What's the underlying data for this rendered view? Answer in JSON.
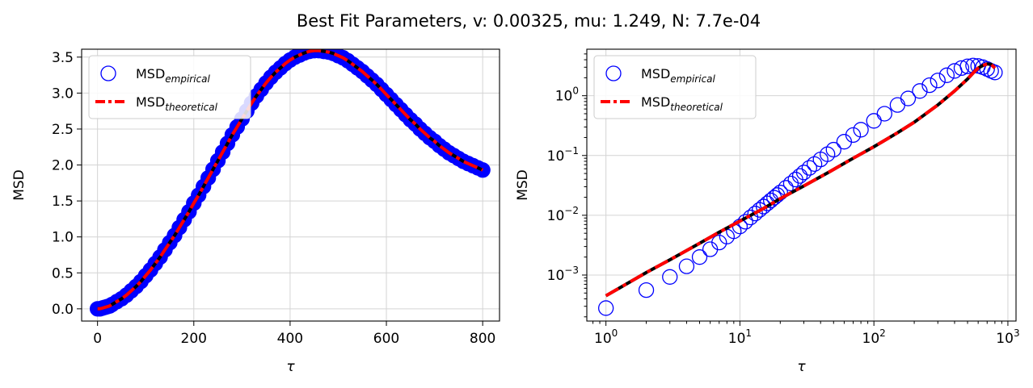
{
  "figure": {
    "suptitle": "Best Fit Parameters, v: 0.00325, mu: 1.249, N: 7.7e-04"
  },
  "chart_data": [
    {
      "type": "scatter",
      "id": "linear",
      "xlabel": "τ",
      "ylabel": "MSD",
      "xlim": [
        -33,
        835
      ],
      "ylim": [
        -0.17,
        3.61
      ],
      "xscale": "linear",
      "yscale": "linear",
      "xticks": [
        0,
        200,
        400,
        600,
        800
      ],
      "xtick_labels": [
        "0",
        "200",
        "400",
        "600",
        "800"
      ],
      "yticks": [
        0.0,
        0.5,
        1.0,
        1.5,
        2.0,
        2.5,
        3.0,
        3.5
      ],
      "ytick_labels": [
        "0.0",
        "0.5",
        "1.0",
        "1.5",
        "2.0",
        "2.5",
        "3.0",
        "3.5"
      ],
      "grid": true,
      "legend_position": "upper-left",
      "series": [
        {
          "name_base": "MSD",
          "name_sub": "empirical",
          "kind": "markers",
          "color": "#0000ff",
          "x": [
            0,
            5,
            10,
            15,
            20,
            25,
            30,
            40,
            50,
            60,
            70,
            80,
            90,
            100,
            110,
            120,
            130,
            140,
            150,
            160,
            170,
            180,
            190,
            200,
            210,
            220,
            230,
            240,
            250,
            260,
            270,
            280,
            290,
            300,
            310,
            320,
            330,
            340,
            350,
            360,
            370,
            380,
            390,
            400,
            410,
            420,
            430,
            440,
            450,
            460,
            470,
            480,
            490,
            500,
            510,
            520,
            530,
            540,
            550,
            560,
            570,
            580,
            590,
            600,
            610,
            620,
            630,
            640,
            650,
            660,
            670,
            680,
            690,
            700,
            710,
            720,
            730,
            740,
            750,
            760,
            770,
            780,
            790,
            800
          ],
          "y": [
            0.0,
            0.0,
            0.01,
            0.02,
            0.03,
            0.04,
            0.06,
            0.1,
            0.14,
            0.19,
            0.25,
            0.31,
            0.38,
            0.46,
            0.54,
            0.63,
            0.72,
            0.82,
            0.92,
            1.02,
            1.13,
            1.24,
            1.35,
            1.47,
            1.58,
            1.7,
            1.82,
            1.94,
            2.06,
            2.18,
            2.3,
            2.42,
            2.53,
            2.64,
            2.75,
            2.86,
            2.96,
            3.05,
            3.14,
            3.22,
            3.29,
            3.35,
            3.41,
            3.46,
            3.5,
            3.53,
            3.56,
            3.58,
            3.59,
            3.59,
            3.58,
            3.57,
            3.55,
            3.52,
            3.49,
            3.45,
            3.4,
            3.35,
            3.3,
            3.24,
            3.18,
            3.12,
            3.05,
            2.98,
            2.91,
            2.84,
            2.77,
            2.7,
            2.63,
            2.57,
            2.5,
            2.44,
            2.38,
            2.33,
            2.27,
            2.22,
            2.17,
            2.13,
            2.09,
            2.05,
            2.02,
            1.99,
            1.96,
            1.93
          ]
        },
        {
          "name_base": "MSD",
          "name_sub": "theoretical",
          "kind": "line",
          "color": "#ff0000",
          "x": [
            0,
            5,
            10,
            15,
            20,
            25,
            30,
            40,
            50,
            60,
            70,
            80,
            90,
            100,
            110,
            120,
            130,
            140,
            150,
            160,
            170,
            180,
            190,
            200,
            210,
            220,
            230,
            240,
            250,
            260,
            270,
            280,
            290,
            300,
            310,
            320,
            330,
            340,
            350,
            360,
            370,
            380,
            390,
            400,
            410,
            420,
            430,
            440,
            450,
            460,
            470,
            480,
            490,
            500,
            510,
            520,
            530,
            540,
            550,
            560,
            570,
            580,
            590,
            600,
            610,
            620,
            630,
            640,
            650,
            660,
            670,
            680,
            690,
            700,
            710,
            720,
            730,
            740,
            750,
            760,
            770,
            780,
            790,
            800
          ],
          "y": [
            0.0,
            0.0,
            0.01,
            0.02,
            0.03,
            0.04,
            0.06,
            0.1,
            0.14,
            0.19,
            0.25,
            0.31,
            0.38,
            0.46,
            0.54,
            0.63,
            0.72,
            0.82,
            0.92,
            1.02,
            1.13,
            1.24,
            1.35,
            1.47,
            1.58,
            1.7,
            1.82,
            1.94,
            2.06,
            2.18,
            2.3,
            2.42,
            2.53,
            2.64,
            2.75,
            2.86,
            2.96,
            3.05,
            3.14,
            3.22,
            3.29,
            3.35,
            3.41,
            3.46,
            3.5,
            3.53,
            3.56,
            3.58,
            3.59,
            3.59,
            3.58,
            3.57,
            3.55,
            3.52,
            3.49,
            3.45,
            3.4,
            3.35,
            3.3,
            3.24,
            3.18,
            3.12,
            3.05,
            2.98,
            2.91,
            2.84,
            2.77,
            2.7,
            2.63,
            2.57,
            2.5,
            2.44,
            2.38,
            2.33,
            2.27,
            2.22,
            2.17,
            2.13,
            2.09,
            2.05,
            2.02,
            1.99,
            1.96,
            1.93
          ]
        }
      ]
    },
    {
      "type": "scatter",
      "id": "loglog",
      "xlabel": "τ",
      "ylabel": "MSD",
      "xlim": [
        0.72,
        1150
      ],
      "ylim": [
        0.00017,
        6.0
      ],
      "xscale": "log",
      "yscale": "log",
      "xticks": [
        1,
        10,
        100,
        1000
      ],
      "xtick_base": [
        "10",
        "10",
        "10",
        "10"
      ],
      "xtick_exp": [
        "0",
        "1",
        "2",
        "3"
      ],
      "yticks": [
        0.001,
        0.01,
        0.1,
        1
      ],
      "ytick_base": [
        "10",
        "10",
        "10",
        "10"
      ],
      "ytick_exp": [
        "−3",
        "−2",
        "−1",
        "0"
      ],
      "grid": true,
      "legend_position": "upper-left",
      "series": [
        {
          "name_base": "MSD",
          "name_sub": "empirical",
          "kind": "markers",
          "color": "#0000ff",
          "x": [
            1,
            2,
            3,
            4,
            5,
            6,
            7,
            8,
            9,
            10,
            11,
            12,
            13,
            14,
            15,
            16,
            17,
            18,
            19,
            20,
            22,
            24,
            26,
            28,
            30,
            33,
            36,
            40,
            45,
            50,
            60,
            70,
            80,
            100,
            120,
            150,
            180,
            220,
            260,
            300,
            350,
            400,
            450,
            500,
            550,
            600,
            650,
            700,
            750,
            800
          ],
          "y": [
            0.00028,
            0.00056,
            0.00093,
            0.0014,
            0.002,
            0.0027,
            0.0035,
            0.0044,
            0.0054,
            0.0065,
            0.0078,
            0.0092,
            0.0107,
            0.0123,
            0.014,
            0.0158,
            0.0177,
            0.0197,
            0.0218,
            0.024,
            0.0288,
            0.034,
            0.0396,
            0.0455,
            0.052,
            0.062,
            0.072,
            0.086,
            0.105,
            0.125,
            0.17,
            0.22,
            0.27,
            0.38,
            0.5,
            0.7,
            0.9,
            1.2,
            1.5,
            1.8,
            2.2,
            2.6,
            2.9,
            3.1,
            3.2,
            3.15,
            3.0,
            2.8,
            2.6,
            2.45
          ]
        },
        {
          "name_base": "MSD",
          "name_sub": "theoretical",
          "kind": "line",
          "color": "#ff0000",
          "x": [
            1,
            2,
            3,
            5,
            7,
            10,
            15,
            20,
            30,
            45,
            70,
            100,
            150,
            200,
            300,
            400,
            500,
            550,
            600,
            650,
            700,
            750,
            800
          ],
          "y": [
            0.00045,
            0.0011,
            0.0018,
            0.0034,
            0.0052,
            0.008,
            0.013,
            0.019,
            0.031,
            0.051,
            0.09,
            0.14,
            0.24,
            0.36,
            0.7,
            1.2,
            1.9,
            2.4,
            2.9,
            3.2,
            3.4,
            3.35,
            2.9
          ]
        }
      ]
    }
  ]
}
